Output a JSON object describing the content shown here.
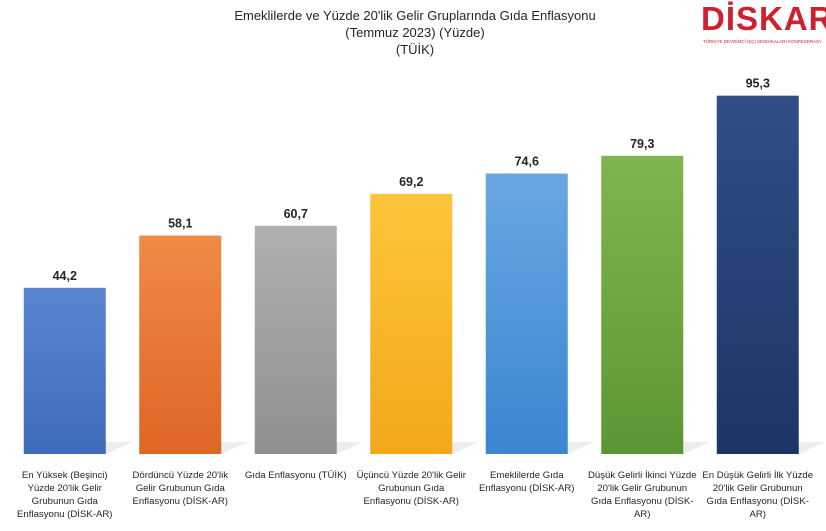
{
  "chart_data": {
    "type": "bar",
    "title": "Emeklilerde ve Yüzde 20'lik Gelir Gruplarında Gıda Enflasyonu",
    "subtitle": "(Temmuz 2023) (Yüzde)",
    "source": "(TÜİK)",
    "categories": [
      [
        "En Yüksek (Beşinci)",
        "Yüzde 20'lik Gelir",
        "Grubunun Gıda",
        "Enflasyonu (DİSK-AR)"
      ],
      [
        "Dördüncü Yüzde 20'lik",
        "Gelir Grubunun Gıda",
        "Enflasyonu (DİSK-AR)"
      ],
      [
        "Gıda Enflasyonu (TÜİK)"
      ],
      [
        "Üçüncü Yüzde 20'lik Gelir",
        "Grubunun Gıda",
        "Enflasyonu (DİSK-AR)"
      ],
      [
        "Emeklilerde Gıda",
        "Enflasyonu (DİSK-AR)"
      ],
      [
        "Düşük Gelirli İkinci Yüzde",
        "20'lik Gelir Grubunun",
        "Gıda Enflasyonu (DİSK-",
        "AR)"
      ],
      [
        "En Düşük Gelirli İlk Yüzde",
        "20'lik Gelir Grubunun",
        "Gıda Enflasyonu (DİSK-",
        "AR)"
      ]
    ],
    "values": [
      44.2,
      58.1,
      60.7,
      69.2,
      74.6,
      79.3,
      95.3
    ],
    "value_labels": [
      "44,2",
      "58,1",
      "60,7",
      "69,2",
      "74,6",
      "79,3",
      "95,3"
    ],
    "colors": [
      [
        "#5b85cf",
        "#3e6bb8"
      ],
      [
        "#f08a47",
        "#de6526"
      ],
      [
        "#b0b0b0",
        "#8f8f8f"
      ],
      [
        "#fdc53d",
        "#f2a81a"
      ],
      [
        "#68a7e2",
        "#3b86d0"
      ],
      [
        "#7fb54e",
        "#5c9634"
      ],
      [
        "#2f4f86",
        "#1d3566"
      ]
    ],
    "ylim": [
      0,
      100
    ],
    "grid": false,
    "legend": false
  },
  "logo": {
    "text": "DİSKAR",
    "tagline": "TÜRKİYE DEVRİMCİ İŞÇİ SENDİKALARI KONFEDERASYONU ARAŞTIRMA MERKEZİ"
  }
}
